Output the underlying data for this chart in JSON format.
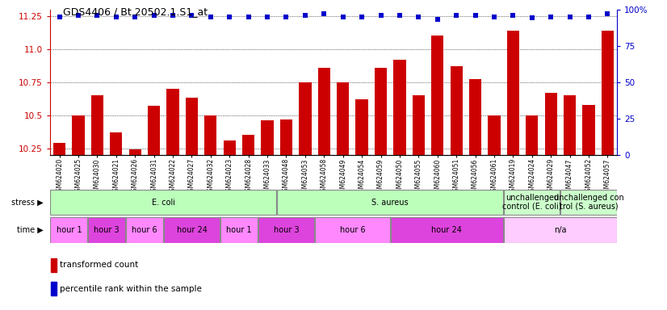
{
  "title": "GDS4406 / Bt.20502.1.S1_at",
  "samples": [
    "GSM624020",
    "GSM624025",
    "GSM624030",
    "GSM624021",
    "GSM624026",
    "GSM624031",
    "GSM624022",
    "GSM624027",
    "GSM624032",
    "GSM624023",
    "GSM624028",
    "GSM624033",
    "GSM624048",
    "GSM624053",
    "GSM624058",
    "GSM624049",
    "GSM624054",
    "GSM624059",
    "GSM624050",
    "GSM624055",
    "GSM624060",
    "GSM624051",
    "GSM624056",
    "GSM624061",
    "GSM624019",
    "GSM624024",
    "GSM624029",
    "GSM624047",
    "GSM624052",
    "GSM624057"
  ],
  "bar_values": [
    10.29,
    10.5,
    10.65,
    10.37,
    10.24,
    10.57,
    10.7,
    10.63,
    10.5,
    10.31,
    10.35,
    10.46,
    10.47,
    10.75,
    10.86,
    10.75,
    10.62,
    10.86,
    10.92,
    10.65,
    11.1,
    10.87,
    10.77,
    10.5,
    11.14,
    10.5,
    10.67,
    10.65,
    10.58,
    11.14
  ],
  "percentile_values": [
    95,
    96,
    96,
    95,
    95,
    96,
    96,
    96,
    95,
    95,
    95,
    95,
    95,
    96,
    97,
    95,
    95,
    96,
    96,
    95,
    93,
    96,
    96,
    95,
    96,
    94,
    95,
    95,
    95,
    97
  ],
  "ylim_left": [
    10.2,
    11.3
  ],
  "ylim_right": [
    0,
    100
  ],
  "yticks_left": [
    10.25,
    10.5,
    10.75,
    11.0,
    11.25
  ],
  "yticks_right": [
    0,
    25,
    50,
    75,
    100
  ],
  "bar_color": "#CC0000",
  "dot_color": "#0000CC",
  "background_color": "#ffffff",
  "stress_groups": [
    {
      "label": "E. coli",
      "start": 0,
      "end": 11,
      "color": "#bbffbb"
    },
    {
      "label": "S. aureus",
      "start": 12,
      "end": 23,
      "color": "#bbffbb"
    },
    {
      "label": "unchallenged\ncontrol (E. coli)",
      "start": 24,
      "end": 26,
      "color": "#ccffcc"
    },
    {
      "label": "unchallenged con\ntrol (S. aureus)",
      "start": 27,
      "end": 29,
      "color": "#ccffcc"
    }
  ],
  "time_groups": [
    {
      "label": "hour 1",
      "start": 0,
      "end": 1,
      "color": "#ff88ff"
    },
    {
      "label": "hour 3",
      "start": 2,
      "end": 3,
      "color": "#dd44dd"
    },
    {
      "label": "hour 6",
      "start": 4,
      "end": 5,
      "color": "#ff88ff"
    },
    {
      "label": "hour 24",
      "start": 6,
      "end": 8,
      "color": "#dd44dd"
    },
    {
      "label": "hour 1",
      "start": 9,
      "end": 10,
      "color": "#ff88ff"
    },
    {
      "label": "hour 3",
      "start": 11,
      "end": 13,
      "color": "#dd44dd"
    },
    {
      "label": "hour 6",
      "start": 14,
      "end": 17,
      "color": "#ff88ff"
    },
    {
      "label": "hour 24",
      "start": 18,
      "end": 23,
      "color": "#dd44dd"
    },
    {
      "label": "n/a",
      "start": 24,
      "end": 29,
      "color": "#ffccff"
    }
  ]
}
